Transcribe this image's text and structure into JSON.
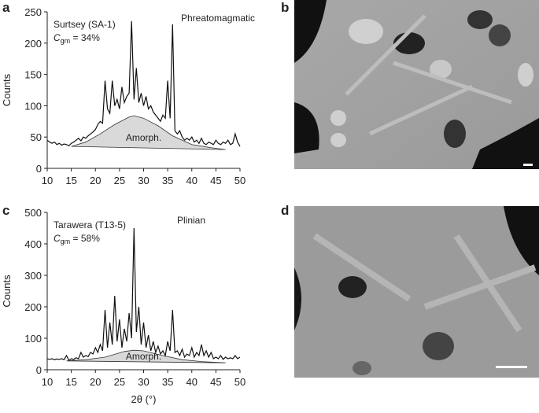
{
  "panel_labels": [
    "a",
    "b",
    "c",
    "d"
  ],
  "chart_data": [
    {
      "type": "line",
      "ylabel": "Counts",
      "annotations": {
        "sample": "Surtsey (SA-1)",
        "cgm": [
          "C",
          "gm",
          " = 34%"
        ],
        "style": "Phreatomagmatic"
      },
      "xlim": [
        10,
        50
      ],
      "xticks": [
        10,
        15,
        20,
        25,
        30,
        35,
        40,
        45,
        50
      ],
      "ylim": [
        0,
        250
      ],
      "yticks": [
        0,
        50,
        100,
        150,
        200,
        250
      ],
      "x": [
        10,
        10.5,
        11,
        11.5,
        12,
        12.5,
        13,
        13.5,
        14,
        14.5,
        15,
        15.5,
        16,
        16.5,
        17,
        17.5,
        18,
        18.5,
        19,
        19.5,
        20,
        20.5,
        21,
        21.5,
        22,
        22.5,
        23,
        23.5,
        24,
        24.5,
        25,
        25.5,
        26,
        26.5,
        27,
        27.5,
        28,
        28.5,
        29,
        29.5,
        30,
        30.5,
        31,
        31.5,
        32,
        32.5,
        33,
        33.5,
        34,
        34.5,
        35,
        35.5,
        36,
        36.5,
        37,
        37.5,
        38,
        38.5,
        39,
        39.5,
        40,
        40.5,
        41,
        41.5,
        42,
        42.5,
        43,
        43.5,
        44,
        44.5,
        45,
        45.5,
        46,
        46.5,
        47,
        47.5,
        48,
        48.5,
        49,
        49.5,
        50
      ],
      "series": [
        {
          "color": "#111111",
          "values": [
            45,
            42,
            40,
            42,
            38,
            40,
            37,
            39,
            38,
            36,
            40,
            42,
            45,
            48,
            44,
            50,
            48,
            52,
            55,
            58,
            62,
            70,
            75,
            72,
            140,
            95,
            88,
            140,
            100,
            110,
            95,
            130,
            105,
            115,
            120,
            235,
            110,
            160,
            105,
            120,
            100,
            115,
            95,
            100,
            90,
            85,
            80,
            75,
            85,
            80,
            140,
            80,
            230,
            60,
            55,
            60,
            50,
            45,
            48,
            45,
            50,
            42,
            45,
            40,
            48,
            40,
            38,
            42,
            40,
            38,
            45,
            40,
            38,
            42,
            40,
            45,
            38,
            40,
            55,
            42,
            35
          ]
        },
        {
          "name": "Amorph.",
          "color": "#d9d9d9",
          "x": [
            15,
            18,
            21,
            24,
            27,
            28,
            30,
            33,
            36,
            40,
            44,
            47
          ],
          "values": [
            35,
            42,
            55,
            70,
            82,
            84,
            80,
            68,
            52,
            38,
            33,
            30
          ]
        }
      ]
    },
    {
      "type": "line",
      "ylabel": "Counts",
      "xlabel": "2θ (°)",
      "annotations": {
        "sample": "Tarawera (T13-5)",
        "cgm": [
          "C",
          "gm",
          " = 58%"
        ],
        "style": "Plinian"
      },
      "xlim": [
        10,
        50
      ],
      "xticks": [
        10,
        15,
        20,
        25,
        30,
        35,
        40,
        45,
        50
      ],
      "ylim": [
        0,
        500
      ],
      "yticks": [
        0,
        100,
        200,
        300,
        400,
        500
      ],
      "x": [
        10,
        10.5,
        11,
        11.5,
        12,
        12.5,
        13,
        13.5,
        14,
        14.5,
        15,
        15.5,
        16,
        16.5,
        17,
        17.5,
        18,
        18.5,
        19,
        19.5,
        20,
        20.5,
        21,
        21.5,
        22,
        22.5,
        23,
        23.5,
        24,
        24.5,
        25,
        25.5,
        26,
        26.5,
        27,
        27.5,
        28,
        28.5,
        29,
        29.5,
        30,
        30.5,
        31,
        31.5,
        32,
        32.5,
        33,
        33.5,
        34,
        34.5,
        35,
        35.5,
        36,
        36.5,
        37,
        37.5,
        38,
        38.5,
        39,
        39.5,
        40,
        40.5,
        41,
        41.5,
        42,
        42.5,
        43,
        43.5,
        44,
        44.5,
        45,
        45.5,
        46,
        46.5,
        47,
        47.5,
        48,
        48.5,
        49,
        49.5,
        50
      ],
      "series": [
        {
          "color": "#111111",
          "values": [
            35,
            33,
            35,
            32,
            34,
            33,
            35,
            32,
            45,
            30,
            35,
            33,
            38,
            35,
            55,
            40,
            45,
            42,
            55,
            50,
            70,
            55,
            80,
            60,
            190,
            70,
            150,
            80,
            235,
            90,
            160,
            70,
            130,
            90,
            180,
            100,
            450,
            120,
            200,
            80,
            150,
            70,
            110,
            60,
            90,
            55,
            75,
            50,
            60,
            45,
            90,
            60,
            190,
            55,
            60,
            45,
            65,
            40,
            50,
            45,
            70,
            40,
            55,
            45,
            80,
            45,
            60,
            40,
            55,
            35,
            40,
            35,
            45,
            33,
            40,
            35,
            38,
            35,
            45,
            35,
            40
          ]
        },
        {
          "name": "Amorph.",
          "color": "#d9d9d9",
          "x": [
            14,
            18,
            22,
            26,
            28,
            30,
            34,
            38,
            42,
            47
          ],
          "values": [
            28,
            32,
            40,
            58,
            62,
            60,
            45,
            32,
            26,
            22
          ]
        }
      ]
    }
  ]
}
